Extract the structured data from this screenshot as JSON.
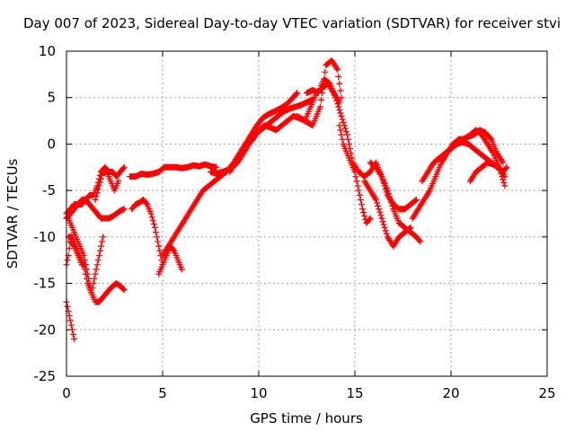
{
  "chart_data": {
    "type": "scatter",
    "title": "Day 007 of 2023, Sidereal Day-to-day VTEC variation (SDTVAR) for receiver stvi",
    "xlabel": "GPS time / hours",
    "ylabel": "SDTVAR / TECUs",
    "xlim": [
      0,
      25
    ],
    "ylim": [
      -25,
      10
    ],
    "xticks": [
      0,
      5,
      10,
      15,
      20,
      25
    ],
    "yticks": [
      10,
      5,
      0,
      -5,
      -10,
      -15,
      -20,
      -25
    ],
    "xtick_labels": [
      "0",
      "5",
      "10",
      "15",
      "20",
      "25"
    ],
    "ytick_labels": [
      "10",
      "5",
      "0",
      "-5",
      "-10",
      "-15",
      "-20",
      "-25"
    ],
    "grid": true,
    "legend": "none",
    "marker": "+",
    "color": "#ff0000",
    "series": [
      {
        "x": [
          0.0,
          0.1,
          0.2,
          0.3,
          0.4
        ],
        "y": [
          -17,
          -18,
          -19,
          -20,
          -21
        ]
      },
      {
        "x": [
          0.0,
          0.1,
          0.2,
          0.4,
          0.6,
          0.8,
          1.0
        ],
        "y": [
          -13,
          -12,
          -10.5,
          -11,
          -12,
          -13,
          -13
        ]
      },
      {
        "x": [
          0.1,
          0.3,
          0.5,
          0.7,
          0.9,
          1.1,
          1.3,
          1.5,
          1.7,
          1.9,
          2.1,
          2.3,
          2.6,
          2.8,
          3.0
        ],
        "y": [
          -10,
          -10,
          -11,
          -12,
          -13,
          -15,
          -16,
          -17,
          -17,
          -16.5,
          -16,
          -15.5,
          -15,
          -15.3,
          -15.7
        ]
      },
      {
        "x": [
          0.0,
          0.2,
          0.4,
          0.6,
          0.8,
          1.0,
          1.2,
          1.4,
          1.6,
          1.8,
          2.0,
          2.2,
          2.4,
          2.6,
          2.8,
          3.0
        ],
        "y": [
          -8,
          -7.5,
          -7,
          -6.5,
          -6,
          -6,
          -6.5,
          -7,
          -7.5,
          -8,
          -8,
          -8,
          -7.8,
          -7.5,
          -7.2,
          -7
        ]
      },
      {
        "x": [
          0.0,
          0.2,
          0.4,
          0.6,
          0.8,
          1.0,
          1.2,
          1.4,
          1.6,
          1.8,
          2.0,
          2.2,
          2.4,
          2.6,
          2.8,
          3.0
        ],
        "y": [
          -7.5,
          -7,
          -6.5,
          -6.5,
          -6.5,
          -6,
          -5.5,
          -5.5,
          -4.5,
          -3,
          -2.5,
          -3,
          -3,
          -3.5,
          -3,
          -2.5
        ]
      },
      {
        "x": [
          0.1,
          0.3,
          0.5,
          0.7,
          0.9,
          1.1,
          1.3,
          1.5,
          1.7,
          1.9
        ],
        "y": [
          -8,
          -9,
          -10,
          -11,
          -12,
          -14,
          -16,
          -14,
          -12,
          -10
        ]
      },
      {
        "x": [
          1.5,
          1.7,
          1.9,
          2.1,
          2.3,
          2.5,
          2.7
        ],
        "y": [
          -6,
          -4.5,
          -3,
          -3,
          -4,
          -5,
          -4
        ]
      },
      {
        "x": [
          3.3,
          3.6,
          3.9,
          4.2,
          4.5,
          4.8,
          5.1,
          5.4,
          5.7,
          6.0,
          6.3,
          6.6,
          6.9,
          7.2,
          7.5,
          7.8
        ],
        "y": [
          -3.5,
          -3.5,
          -3.2,
          -3.3,
          -3.2,
          -3.0,
          -2.5,
          -2.5,
          -2.5,
          -2.6,
          -2.5,
          -2.3,
          -2.4,
          -2.2,
          -2.4,
          -2.5
        ]
      },
      {
        "x": [
          3.4,
          3.6,
          3.8,
          4.0,
          4.2,
          4.4,
          4.6,
          4.8,
          5.0
        ],
        "y": [
          -7,
          -6.5,
          -6.3,
          -6,
          -6.5,
          -7.5,
          -9,
          -11,
          -13
        ]
      },
      {
        "x": [
          4.8,
          5.0,
          5.2,
          5.4,
          5.6,
          5.8,
          6.0
        ],
        "y": [
          -14,
          -13,
          -12,
          -11,
          -11.5,
          -12.5,
          -13.5
        ]
      },
      {
        "x": [
          5.0,
          5.3,
          5.6,
          5.9,
          6.2,
          6.5,
          6.8,
          7.1,
          7.4,
          7.7,
          8.0,
          8.3,
          8.6,
          8.9,
          9.2,
          9.5,
          9.8,
          10.1,
          10.4,
          10.7,
          11.0,
          11.3,
          11.6,
          11.9,
          12.2,
          12.5,
          12.8
        ],
        "y": [
          -12,
          -11,
          -10,
          -9,
          -8,
          -7,
          -6,
          -5,
          -4.5,
          -4,
          -3.5,
          -3,
          -2.5,
          -2,
          -1,
          0,
          1,
          1.5,
          2,
          2.5,
          3,
          3.5,
          3.8,
          4,
          4.2,
          4.5,
          4.8
        ]
      },
      {
        "x": [
          7.5,
          7.8,
          8.1,
          8.4,
          8.7,
          9.0,
          9.3,
          9.6,
          9.9,
          10.2,
          10.5,
          10.8,
          11.1,
          11.4,
          11.7,
          12.0
        ],
        "y": [
          -3,
          -3.2,
          -3,
          -2.8,
          -2,
          -1,
          0,
          1,
          2,
          2.8,
          3.2,
          3.5,
          3.8,
          4.2,
          4.8,
          5.5
        ]
      },
      {
        "x": [
          8.5,
          8.8,
          9.1,
          9.4,
          9.7,
          10.0,
          10.3,
          10.6,
          10.9,
          11.2,
          11.5,
          11.8,
          12.1,
          12.4,
          12.7,
          13.0,
          13.3,
          13.6,
          13.9,
          14.2
        ],
        "y": [
          -3,
          -2,
          -1,
          0,
          0.5,
          1.5,
          2,
          1.8,
          1.5,
          2,
          2.5,
          3,
          2.8,
          2.5,
          4,
          5.5,
          6,
          6.5,
          5.5,
          4.5
        ]
      },
      {
        "x": [
          12.0,
          12.4,
          12.8,
          13.2,
          13.5,
          13.8,
          14.1,
          14.3
        ],
        "y": [
          3,
          2.5,
          2,
          4,
          8.5,
          9,
          8,
          5
        ]
      },
      {
        "x": [
          12.5,
          12.8,
          13.1,
          13.4,
          13.7,
          14.0,
          14.3,
          14.6,
          14.9,
          15.2,
          15.5,
          15.8,
          16.1,
          16.4,
          16.7,
          17.0,
          17.3,
          17.6,
          17.9,
          18.2,
          18.4
        ],
        "y": [
          5.5,
          5.8,
          5.5,
          7,
          6.5,
          5,
          3,
          1,
          -2,
          -3,
          -3.5,
          -3,
          -2,
          -3.5,
          -5,
          -7,
          -8.5,
          -9,
          -9.5,
          -10,
          -10.5
        ]
      },
      {
        "x": [
          14.2,
          14.4,
          14.6,
          14.8,
          15.0,
          15.2,
          15.4,
          15.6,
          15.8
        ],
        "y": [
          2,
          0,
          -1,
          -2,
          -3,
          -5,
          -7,
          -8.5,
          -8
        ]
      },
      {
        "x": [
          15.5,
          15.8,
          16.1,
          16.4,
          16.7,
          17.0,
          17.3,
          17.6,
          17.9
        ],
        "y": [
          -4,
          -5,
          -6,
          -8,
          -10,
          -11,
          -10,
          -9.5,
          -9
        ]
      },
      {
        "x": [
          15.8,
          16.1,
          16.4,
          16.7,
          17.0,
          17.3,
          17.6,
          17.9,
          18.2
        ],
        "y": [
          -2,
          -2.5,
          -3.5,
          -5.5,
          -6.5,
          -7,
          -7,
          -6.5,
          -6
        ]
      },
      {
        "x": [
          18.0,
          18.3,
          18.6,
          18.9,
          19.2,
          19.5,
          19.8,
          20.1,
          20.4,
          20.7,
          21.0,
          21.3,
          21.6,
          21.9,
          22.2,
          22.5,
          22.8
        ],
        "y": [
          -8,
          -7,
          -6,
          -5,
          -3.5,
          -2,
          -1,
          0,
          0.5,
          0.5,
          1,
          1.5,
          1,
          0,
          -1,
          -2.5,
          -3.5
        ]
      },
      {
        "x": [
          18.5,
          18.8,
          19.1,
          19.4,
          19.7,
          20.0,
          20.3,
          20.6,
          20.9,
          21.2,
          21.5,
          21.8,
          22.1,
          22.4,
          22.7
        ],
        "y": [
          -4,
          -3,
          -2,
          -1.5,
          -1,
          -0.5,
          0,
          0.5,
          0.8,
          1,
          1.5,
          1.2,
          0.5,
          -1,
          -2
        ]
      },
      {
        "x": [
          19.7,
          20.0,
          20.3,
          20.6,
          20.9,
          21.2,
          21.5,
          21.8,
          22.1,
          22.4,
          22.7,
          22.9
        ],
        "y": [
          -1,
          -0.5,
          0,
          0.2,
          0,
          -0.5,
          -1,
          -1.5,
          -2,
          -2.5,
          -3,
          -2.5
        ]
      },
      {
        "x": [
          21.0,
          21.3,
          21.6,
          21.9,
          22.2,
          22.5,
          22.8
        ],
        "y": [
          -4,
          -3,
          -2.5,
          -2,
          -2.2,
          -2.5,
          -4.5
        ]
      }
    ]
  }
}
